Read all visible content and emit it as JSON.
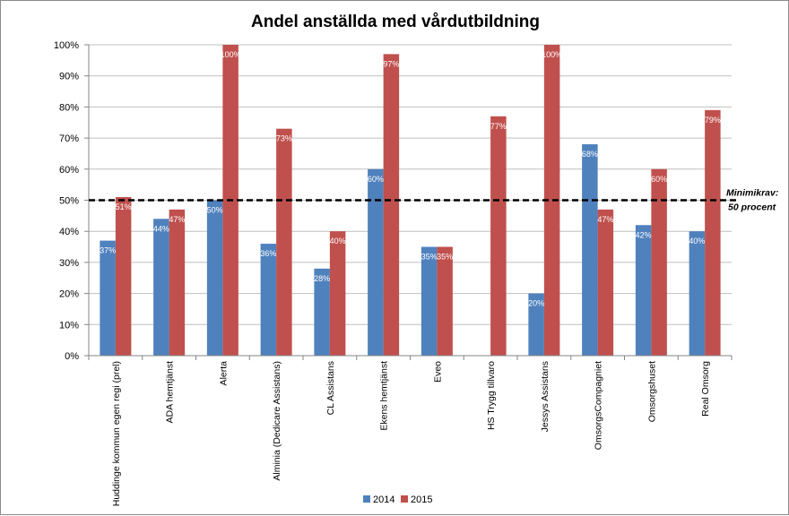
{
  "chart_data": {
    "type": "bar",
    "title": "Andel anställda med vårdutbildning",
    "xlabel": "",
    "ylabel": "",
    "ylim": [
      0,
      100
    ],
    "yticks": [
      "0%",
      "10%",
      "20%",
      "30%",
      "40%",
      "50%",
      "60%",
      "70%",
      "80%",
      "90%",
      "100%"
    ],
    "grid": true,
    "categories": [
      "Huddinge kommun egen regi (prel)",
      "ADA hemtjänst",
      "Alerta",
      "Alminia (Dedicare Assistans)",
      "CL Assistans",
      "Ekens hemtjänst",
      "Eveo",
      "HS Trygg tillvaro",
      "Jessys Assistans",
      "OmsorgsCompagniet",
      "Omsorgshuset",
      "Real Omsorg"
    ],
    "series": [
      {
        "name": "2014",
        "color": "#4F81BD",
        "values": [
          37,
          44,
          50,
          36,
          28,
          60,
          35,
          null,
          20,
          68,
          42,
          40
        ],
        "labels": [
          "37%",
          "44%",
          "50%",
          "36%",
          "28%",
          "60%",
          "35%",
          "",
          "20%",
          "68%",
          "42%",
          "40%"
        ]
      },
      {
        "name": "2015",
        "color": "#C0504D",
        "values": [
          51,
          47,
          100,
          73,
          40,
          97,
          35,
          77,
          100,
          47,
          60,
          79
        ],
        "labels": [
          "51%",
          "47%",
          "100%",
          "73%",
          "40%",
          "97%",
          "35%",
          "77%",
          "100%",
          "47%",
          "60%",
          "79%"
        ]
      }
    ],
    "reference_line": {
      "value": 50,
      "style": "dashed",
      "label_line1": "Minimikrav:",
      "label_line2": "50 procent"
    },
    "legend": {
      "placement": "bottom",
      "entries": [
        "2014",
        "2015"
      ]
    }
  }
}
